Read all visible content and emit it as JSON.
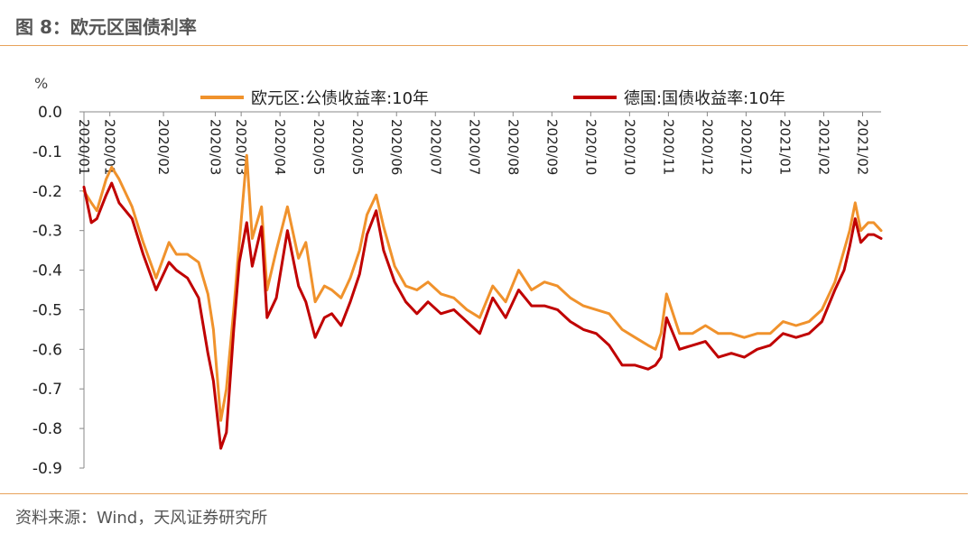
{
  "header": {
    "title": "图 8：欧元区国债利率"
  },
  "footer": {
    "source": "资料来源：Wind，天风证券研究所"
  },
  "colors": {
    "rule": "#e8a25a",
    "series_euro": "#f0922c",
    "series_germany": "#c00000",
    "axis": "#888888"
  },
  "chart_data": {
    "type": "line",
    "ylabel": "%",
    "ylim": [
      -0.9,
      0.0
    ],
    "yticks": [
      0.0,
      -0.1,
      -0.2,
      -0.3,
      -0.4,
      -0.5,
      -0.6,
      -0.7,
      -0.8,
      -0.9
    ],
    "ytick_labels": [
      "0.0",
      "-0.1",
      "-0.2",
      "-0.3",
      "-0.4",
      "-0.5",
      "-0.6",
      "-0.7",
      "-0.8",
      "-0.9"
    ],
    "x_tick_labels": [
      "2020/01",
      "2020/01",
      "2020/02",
      "2020/03",
      "2020/03",
      "2020/04",
      "2020/05",
      "2020/05",
      "2020/06",
      "2020/07",
      "2020/07",
      "2020/08",
      "2020/09",
      "2020/10",
      "2020/10",
      "2020/11",
      "2020/12",
      "2020/12",
      "2021/01",
      "2021/02",
      "2021/02"
    ],
    "x_tick_dates": [
      "2020-01-02",
      "2020-01-16",
      "2020-02-14",
      "2020-03-13",
      "2020-03-27",
      "2020-04-17",
      "2020-05-08",
      "2020-05-29",
      "2020-06-19",
      "2020-07-10",
      "2020-07-31",
      "2020-08-21",
      "2020-09-11",
      "2020-10-02",
      "2020-10-23",
      "2020-11-13",
      "2020-12-04",
      "2020-12-25",
      "2021-01-15",
      "2021-02-05",
      "2021-02-26"
    ],
    "x_range": [
      "2020-01-02",
      "2021-03-08"
    ],
    "legend_position": "top",
    "grid": false,
    "series": [
      {
        "name": "欧元区:公债收益率:10年",
        "color": "#f0922c",
        "x": [
          "2020-01-02",
          "2020-01-06",
          "2020-01-09",
          "2020-01-14",
          "2020-01-17",
          "2020-01-21",
          "2020-01-28",
          "2020-02-03",
          "2020-02-10",
          "2020-02-17",
          "2020-02-21",
          "2020-02-27",
          "2020-03-04",
          "2020-03-09",
          "2020-03-12",
          "2020-03-16",
          "2020-03-19",
          "2020-03-23",
          "2020-03-26",
          "2020-03-30",
          "2020-04-02",
          "2020-04-07",
          "2020-04-10",
          "2020-04-15",
          "2020-04-21",
          "2020-04-27",
          "2020-05-01",
          "2020-05-06",
          "2020-05-11",
          "2020-05-15",
          "2020-05-20",
          "2020-05-25",
          "2020-05-30",
          "2020-06-03",
          "2020-06-08",
          "2020-06-12",
          "2020-06-18",
          "2020-06-24",
          "2020-06-30",
          "2020-07-06",
          "2020-07-13",
          "2020-07-20",
          "2020-07-27",
          "2020-08-03",
          "2020-08-10",
          "2020-08-17",
          "2020-08-24",
          "2020-08-31",
          "2020-09-07",
          "2020-09-14",
          "2020-09-21",
          "2020-09-28",
          "2020-10-05",
          "2020-10-12",
          "2020-10-19",
          "2020-10-26",
          "2020-11-02",
          "2020-11-06",
          "2020-11-09",
          "2020-11-12",
          "2020-11-19",
          "2020-11-26",
          "2020-12-03",
          "2020-12-10",
          "2020-12-17",
          "2020-12-24",
          "2020-12-31",
          "2021-01-07",
          "2021-01-14",
          "2021-01-21",
          "2021-01-28",
          "2021-02-04",
          "2021-02-11",
          "2021-02-16",
          "2021-02-19",
          "2021-02-22",
          "2021-02-25",
          "2021-03-01",
          "2021-03-04",
          "2021-03-08"
        ],
        "values": [
          -0.2,
          -0.23,
          -0.25,
          -0.17,
          -0.14,
          -0.17,
          -0.24,
          -0.33,
          -0.42,
          -0.33,
          -0.36,
          -0.36,
          -0.38,
          -0.46,
          -0.55,
          -0.78,
          -0.7,
          -0.5,
          -0.33,
          -0.11,
          -0.32,
          -0.24,
          -0.45,
          -0.35,
          -0.24,
          -0.37,
          -0.33,
          -0.48,
          -0.44,
          -0.45,
          -0.47,
          -0.42,
          -0.35,
          -0.26,
          -0.21,
          -0.29,
          -0.39,
          -0.44,
          -0.45,
          -0.43,
          -0.46,
          -0.47,
          -0.5,
          -0.52,
          -0.44,
          -0.48,
          -0.4,
          -0.45,
          -0.43,
          -0.44,
          -0.47,
          -0.49,
          -0.5,
          -0.51,
          -0.55,
          -0.57,
          -0.59,
          -0.6,
          -0.56,
          -0.46,
          -0.56,
          -0.56,
          -0.54,
          -0.56,
          -0.56,
          -0.57,
          -0.56,
          -0.56,
          -0.53,
          -0.54,
          -0.53,
          -0.5,
          -0.43,
          -0.35,
          -0.3,
          -0.23,
          -0.3,
          -0.28,
          -0.28,
          -0.3
        ]
      },
      {
        "name": "德国:国债收益率:10年",
        "color": "#c00000",
        "x": [
          "2020-01-02",
          "2020-01-06",
          "2020-01-09",
          "2020-01-14",
          "2020-01-17",
          "2020-01-21",
          "2020-01-28",
          "2020-02-03",
          "2020-02-10",
          "2020-02-17",
          "2020-02-21",
          "2020-02-27",
          "2020-03-04",
          "2020-03-09",
          "2020-03-12",
          "2020-03-16",
          "2020-03-19",
          "2020-03-23",
          "2020-03-26",
          "2020-03-30",
          "2020-04-02",
          "2020-04-07",
          "2020-04-10",
          "2020-04-15",
          "2020-04-21",
          "2020-04-27",
          "2020-05-01",
          "2020-05-06",
          "2020-05-11",
          "2020-05-15",
          "2020-05-20",
          "2020-05-25",
          "2020-05-30",
          "2020-06-03",
          "2020-06-08",
          "2020-06-12",
          "2020-06-18",
          "2020-06-24",
          "2020-06-30",
          "2020-07-06",
          "2020-07-13",
          "2020-07-20",
          "2020-07-27",
          "2020-08-03",
          "2020-08-10",
          "2020-08-17",
          "2020-08-24",
          "2020-08-31",
          "2020-09-07",
          "2020-09-14",
          "2020-09-21",
          "2020-09-28",
          "2020-10-05",
          "2020-10-12",
          "2020-10-19",
          "2020-10-26",
          "2020-11-02",
          "2020-11-06",
          "2020-11-09",
          "2020-11-12",
          "2020-11-19",
          "2020-11-26",
          "2020-12-03",
          "2020-12-10",
          "2020-12-17",
          "2020-12-24",
          "2020-12-31",
          "2021-01-07",
          "2021-01-14",
          "2021-01-21",
          "2021-01-28",
          "2021-02-04",
          "2021-02-11",
          "2021-02-16",
          "2021-02-19",
          "2021-02-22",
          "2021-02-25",
          "2021-03-01",
          "2021-03-04",
          "2021-03-08"
        ],
        "values": [
          -0.19,
          -0.28,
          -0.27,
          -0.21,
          -0.18,
          -0.23,
          -0.27,
          -0.36,
          -0.45,
          -0.38,
          -0.4,
          -0.42,
          -0.47,
          -0.61,
          -0.68,
          -0.85,
          -0.81,
          -0.55,
          -0.38,
          -0.28,
          -0.39,
          -0.29,
          -0.52,
          -0.47,
          -0.3,
          -0.44,
          -0.48,
          -0.57,
          -0.52,
          -0.51,
          -0.54,
          -0.48,
          -0.41,
          -0.31,
          -0.25,
          -0.35,
          -0.43,
          -0.48,
          -0.51,
          -0.48,
          -0.51,
          -0.5,
          -0.53,
          -0.56,
          -0.47,
          -0.52,
          -0.45,
          -0.49,
          -0.49,
          -0.5,
          -0.53,
          -0.55,
          -0.56,
          -0.59,
          -0.64,
          -0.64,
          -0.65,
          -0.64,
          -0.62,
          -0.52,
          -0.6,
          -0.59,
          -0.58,
          -0.62,
          -0.61,
          -0.62,
          -0.6,
          -0.59,
          -0.56,
          -0.57,
          -0.56,
          -0.53,
          -0.45,
          -0.4,
          -0.34,
          -0.27,
          -0.33,
          -0.31,
          -0.31,
          -0.32
        ]
      }
    ]
  }
}
